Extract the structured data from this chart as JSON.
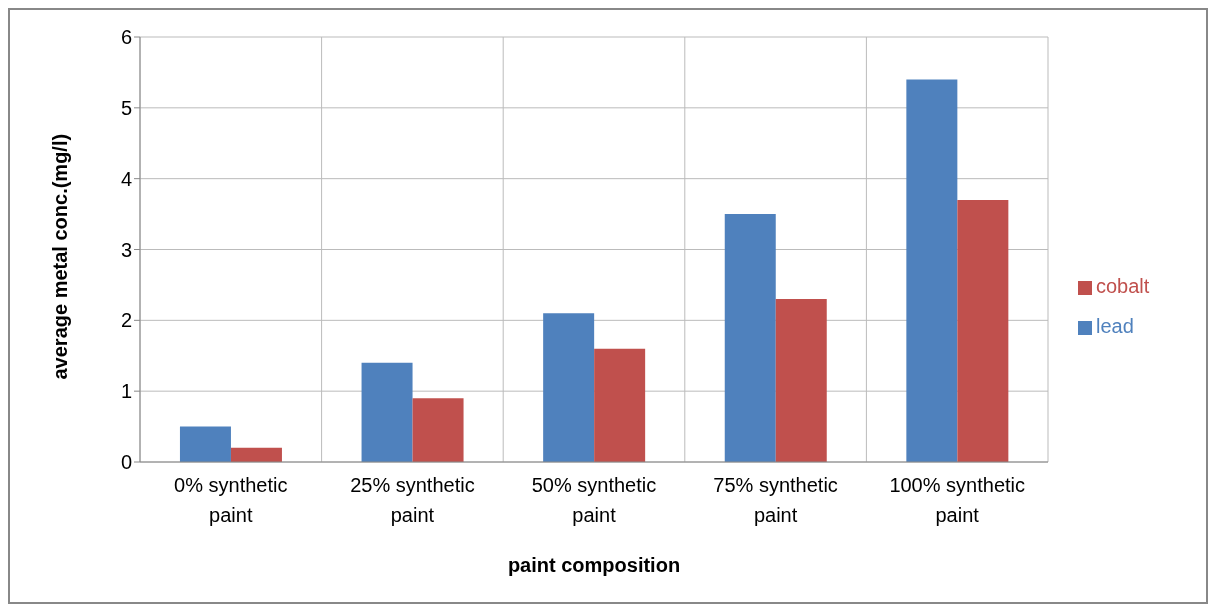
{
  "chart_data": {
    "type": "bar",
    "xlabel": "paint composition",
    "ylabel": "average metal conc.(mg/l)",
    "categories": [
      "0% synthetic paint",
      "25% synthetic paint",
      "50% synthetic paint",
      "75% synthetic paint",
      "100% synthetic paint"
    ],
    "series": [
      {
        "name": "lead",
        "color": "#4f81bd",
        "values": [
          0.5,
          1.4,
          2.1,
          3.5,
          5.4
        ]
      },
      {
        "name": "cobalt",
        "color": "#c0504d",
        "values": [
          0.2,
          0.9,
          1.6,
          2.3,
          3.7
        ]
      }
    ],
    "ylim": [
      0,
      6
    ],
    "yticks": [
      0,
      1,
      2,
      3,
      4,
      5,
      6
    ],
    "grid": true,
    "legend": "right"
  }
}
